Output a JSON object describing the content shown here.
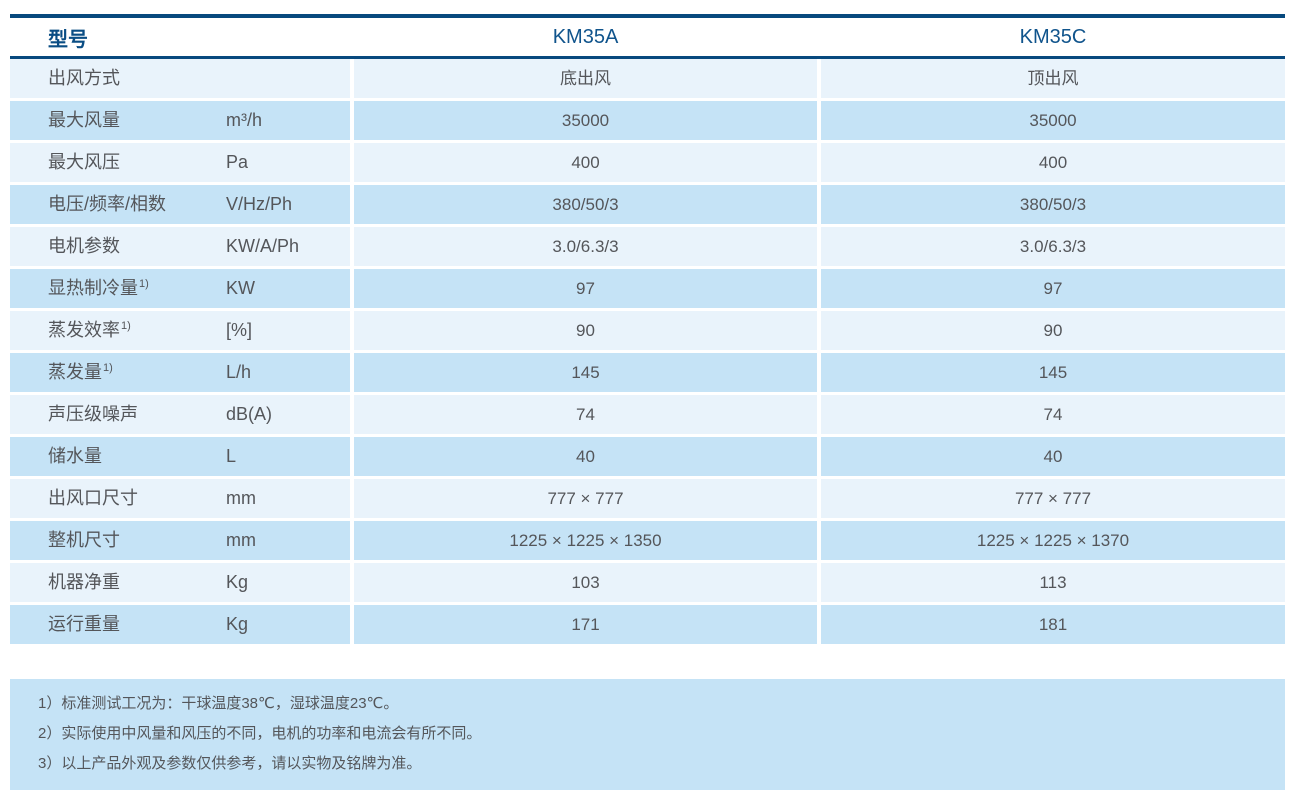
{
  "colors": {
    "navy": "#07497E",
    "header_model_text": "#0A4D84",
    "model_name_text": "#10548C",
    "row_light": "#E9F3FB",
    "row_dark": "#C5E3F6",
    "notes_bg": "#C5E3F6",
    "body_text": "#54565A"
  },
  "table": {
    "header": {
      "model_label": "型号",
      "model_a": "KM35A",
      "model_c": "KM35C"
    },
    "rows": [
      {
        "label": "出风方式",
        "sup": "",
        "unit": "",
        "km35a": "底出风",
        "km35c": "顶出风"
      },
      {
        "label": "最大风量",
        "sup": "",
        "unit": "m³/h",
        "km35a": "35000",
        "km35c": "35000"
      },
      {
        "label": "最大风压",
        "sup": "",
        "unit": "Pa",
        "km35a": "400",
        "km35c": "400"
      },
      {
        "label": "电压/频率/相数",
        "sup": "",
        "unit": "V/Hz/Ph",
        "km35a": "380/50/3",
        "km35c": "380/50/3"
      },
      {
        "label": "电机参数",
        "sup": "",
        "unit": "KW/A/Ph",
        "km35a": "3.0/6.3/3",
        "km35c": "3.0/6.3/3"
      },
      {
        "label": "显热制冷量",
        "sup": "1)",
        "unit": "KW",
        "km35a": "97",
        "km35c": "97"
      },
      {
        "label": "蒸发效率",
        "sup": "1)",
        "unit": "[%]",
        "km35a": "90",
        "km35c": "90"
      },
      {
        "label": "蒸发量",
        "sup": "1)",
        "unit": "L/h",
        "km35a": "145",
        "km35c": "145"
      },
      {
        "label": "声压级噪声",
        "sup": "",
        "unit": "dB(A)",
        "km35a": "74",
        "km35c": "74"
      },
      {
        "label": "储水量",
        "sup": "",
        "unit": "L",
        "km35a": "40",
        "km35c": "40"
      },
      {
        "label": "出风口尺寸",
        "sup": "",
        "unit": "mm",
        "km35a": "777 × 777",
        "km35c": "777 × 777"
      },
      {
        "label": "整机尺寸",
        "sup": "",
        "unit": "mm",
        "km35a": "1225 × 1225 × 1350",
        "km35c": "1225 × 1225 × 1370"
      },
      {
        "label": "机器净重",
        "sup": "",
        "unit": "Kg",
        "km35a": "103",
        "km35c": "113"
      },
      {
        "label": "运行重量",
        "sup": "",
        "unit": "Kg",
        "km35a": "171",
        "km35c": "181"
      }
    ]
  },
  "notes": [
    "1）标准测试工况为：干球温度38℃，湿球温度23℃。",
    "2）实际使用中风量和风压的不同，电机的功率和电流会有所不同。",
    "3）以上产品外观及参数仅供参考，请以实物及铭牌为准。"
  ]
}
